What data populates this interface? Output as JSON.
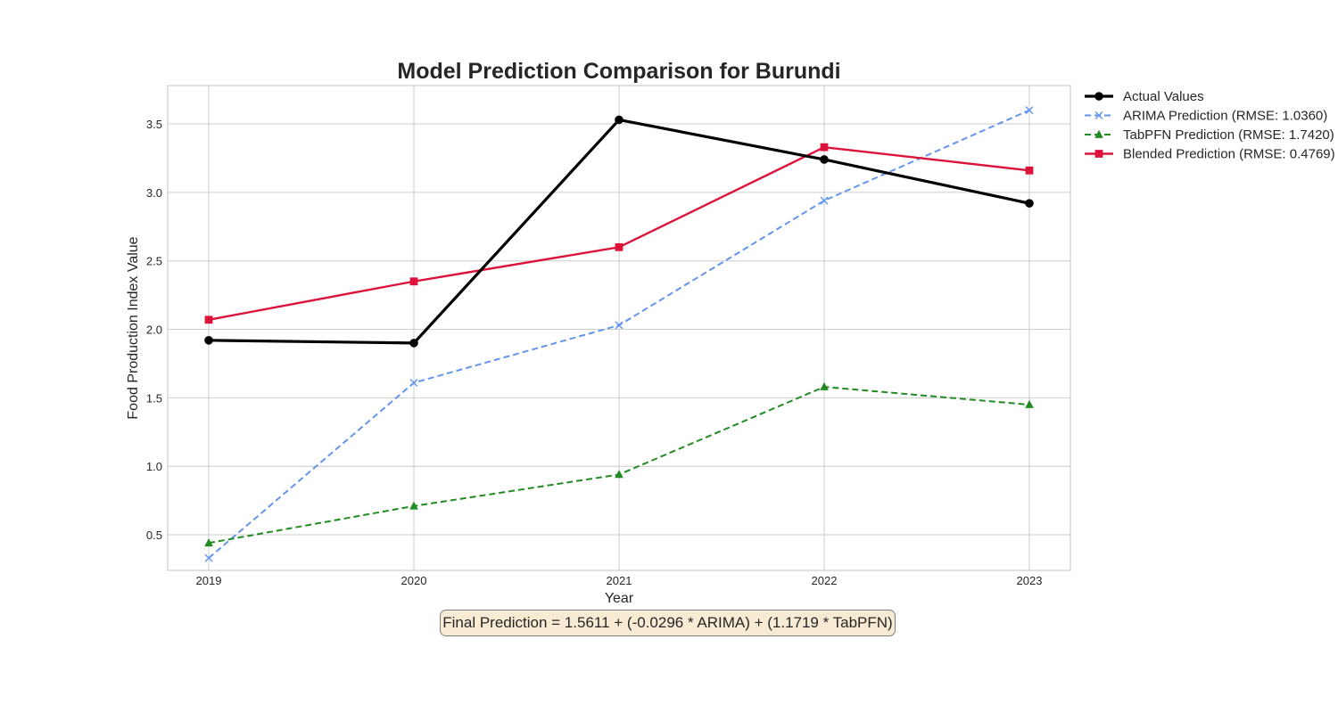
{
  "chart_data": {
    "type": "line",
    "title": "Model Prediction Comparison for Burundi",
    "xlabel": "Year",
    "ylabel": "Food Production Index Value",
    "x": [
      2019,
      2020,
      2021,
      2022,
      2023
    ],
    "x_tick_labels": [
      "2019",
      "2020",
      "2021",
      "2022",
      "2023"
    ],
    "xlim": [
      2018.8,
      2023.2
    ],
    "ylim": [
      0.24,
      3.78
    ],
    "y_ticks": [
      0.5,
      1.0,
      1.5,
      2.0,
      2.5,
      3.0,
      3.5
    ],
    "y_tick_labels": [
      "0.5",
      "1.0",
      "1.5",
      "2.0",
      "2.5",
      "3.0",
      "3.5"
    ],
    "grid": true,
    "legend_placement": "outside-right",
    "series": [
      {
        "name": "Actual Values",
        "values": [
          1.92,
          1.9,
          3.53,
          3.24,
          2.92
        ],
        "color": "#000000",
        "line_style": "solid",
        "marker": "circle"
      },
      {
        "name": "ARIMA Prediction (RMSE: 1.0360)",
        "values": [
          0.33,
          1.61,
          2.03,
          2.94,
          3.6
        ],
        "color": "#6495ed",
        "line_style": "dashed",
        "marker": "x"
      },
      {
        "name": "TabPFN Prediction (RMSE: 1.7420)",
        "values": [
          0.44,
          0.71,
          0.94,
          1.58,
          1.45
        ],
        "color": "#228b22",
        "line_style": "dashed",
        "marker": "triangle"
      },
      {
        "name": "Blended Prediction (RMSE: 0.4769)",
        "values": [
          2.07,
          2.35,
          2.6,
          3.33,
          3.16
        ],
        "color": "#dc143c",
        "line_style": "solid",
        "marker": "square"
      }
    ],
    "annotation": "Final Prediction = 1.5611 + (-0.0296 * ARIMA) + (1.1719 * TabPFN)"
  }
}
